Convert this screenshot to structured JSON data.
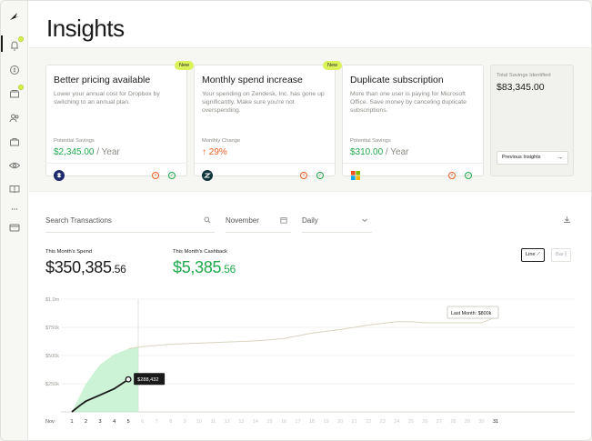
{
  "page": {
    "title": "Insights"
  },
  "sidebar": {
    "icons": [
      "logo-icon",
      "bell-icon",
      "dollar-icon",
      "stack-icon",
      "users-icon",
      "briefcase-icon",
      "eye-icon",
      "book-icon",
      "more-icon",
      "card-icon"
    ]
  },
  "cards": [
    {
      "title": "Better pricing available",
      "badge": "New",
      "description": "Lower your annual cost for Dropbox by switching to an annual plan.",
      "label": "Potential Savings",
      "value": "$2,345.00",
      "suffix": " / Year",
      "logo": "dropbox-logo"
    },
    {
      "title": "Monthly spend increase",
      "badge": "New",
      "description": "Your spending on Zendesk, Inc. has gone up significantly. Make sure you're not overspending.",
      "label": "Monthly Change",
      "value": "↑ 29%",
      "suffix": "",
      "logo": "zendesk-logo"
    },
    {
      "title": "Duplicate subscription",
      "badge": "",
      "description": "More than one user is paying for Microsoft Office. Save money by canceling duplicate subscriptions.",
      "label": "Potential Savings",
      "value": "$310.00",
      "suffix": " / Year",
      "logo": "microsoft-logo"
    }
  ],
  "total": {
    "label": "Total Savings Identified",
    "value": "$83,345.00",
    "button": "Previous Insights"
  },
  "filters": {
    "search_placeholder": "Search Transactions",
    "month": "November",
    "interval": "Daily"
  },
  "stats": {
    "spend_label": "This Month's Spend",
    "spend_main": "$350,385",
    "spend_cents": ".56",
    "cashback_label": "This Month's Cashback",
    "cashback_main": "$5,385",
    "cashback_cents": ".56",
    "line_label": "Line",
    "bar_label": "Bar"
  },
  "colors": {
    "accent_green": "#1fa94b",
    "accent_orange": "#e85f25",
    "badge_yellow": "#dbf25a"
  },
  "chart_data": {
    "type": "line",
    "ylabels": [
      "$1.0m",
      "$750k",
      "$500k",
      "$250k"
    ],
    "yticks": [
      1000000,
      750000,
      500000,
      250000
    ],
    "ylim": [
      0,
      1000000
    ],
    "month_label": "Nov",
    "x": [
      1,
      2,
      3,
      4,
      5,
      6,
      7,
      8,
      9,
      10,
      11,
      12,
      13,
      14,
      15,
      16,
      17,
      18,
      19,
      20,
      21,
      22,
      23,
      24,
      25,
      26,
      27,
      28,
      29,
      30,
      31
    ],
    "current_day": 5,
    "series": [
      {
        "name": "This Month",
        "x": [
          1,
          1.6,
          2,
          3,
          4,
          5
        ],
        "values": [
          0,
          60000,
          95000,
          150000,
          205000,
          288432
        ]
      },
      {
        "name": "Last Month",
        "x": [
          1,
          2,
          3,
          4,
          5,
          6,
          8,
          10,
          12,
          14,
          16,
          18,
          20,
          22,
          24,
          25,
          26,
          28,
          30,
          31
        ],
        "values": [
          0,
          250000,
          420000,
          510000,
          560000,
          580000,
          600000,
          610000,
          620000,
          630000,
          650000,
          700000,
          730000,
          770000,
          800000,
          800000,
          790000,
          790000,
          790000,
          840000
        ]
      }
    ],
    "tooltip_value": "$288,432",
    "annotation": "Last Month: $800k"
  }
}
